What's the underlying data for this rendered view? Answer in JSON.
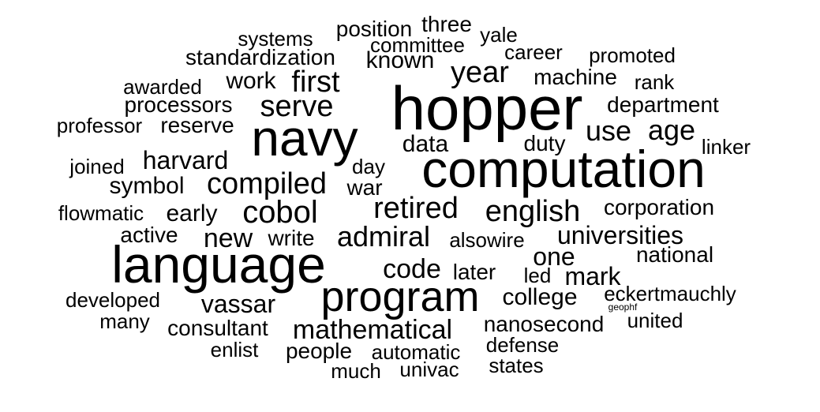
{
  "words": [
    "hopper",
    "computation",
    "language",
    "navy",
    "program",
    "cobol",
    "compiled",
    "english",
    "retired",
    "admiral",
    "serve",
    "year",
    "first",
    "universities",
    "mathematical",
    "use",
    "age",
    "new",
    "code",
    "vassar",
    "data",
    "mark",
    "harvard",
    "early",
    "one",
    "standardization",
    "machine",
    "department",
    "work",
    "known",
    "symbol",
    "college",
    "nanosecond",
    "corporation",
    "processors",
    "reserve",
    "position",
    "eckertmauchly",
    "duty",
    "consultant",
    "national",
    "write",
    "promoted",
    "three",
    "developed",
    "people",
    "automatic",
    "active",
    "war",
    "later",
    "led",
    "committee",
    "systems",
    "career",
    "yale",
    "awarded",
    "rank",
    "professor",
    "linker",
    "joined",
    "day",
    "flowmatic",
    "alsowire",
    "united",
    "many",
    "enlist",
    "defense",
    "univac",
    "much",
    "states",
    "geophf"
  ]
}
